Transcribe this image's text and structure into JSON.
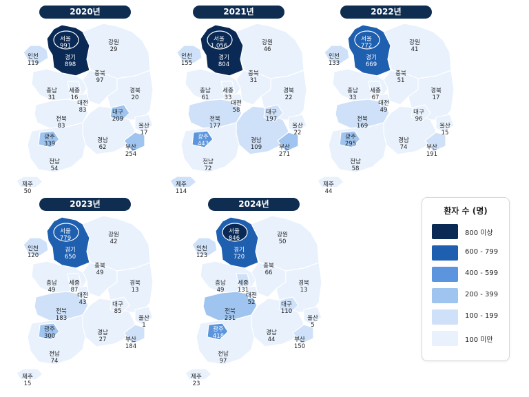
{
  "legend": {
    "title": "환자 수 (명)",
    "bins": [
      {
        "label": "800 이상",
        "color": "#0a2a55"
      },
      {
        "label": "600 - 799",
        "color": "#1f5fb0"
      },
      {
        "label": "400 - 599",
        "color": "#5b95dd"
      },
      {
        "label": "200 - 399",
        "color": "#9ec4ef"
      },
      {
        "label": "100 - 199",
        "color": "#cfe1f8"
      },
      {
        "label": "100 미만",
        "color": "#e8f1fc"
      }
    ]
  },
  "maps": [
    {
      "year": "2020년",
      "regions": {
        "seoul": {
          "name": "서울",
          "value": "991"
        },
        "gyeonggi": {
          "name": "경기",
          "value": "898"
        },
        "incheon": {
          "name": "인천",
          "value": "119"
        },
        "gangwon": {
          "name": "강원",
          "value": "29"
        },
        "chungbuk": {
          "name": "충북",
          "value": "97"
        },
        "chungnam": {
          "name": "충남",
          "value": "31"
        },
        "sejong": {
          "name": "세종",
          "value": "16"
        },
        "daejeon": {
          "name": "대전",
          "value": "83"
        },
        "gyeongbuk": {
          "name": "경북",
          "value": "20"
        },
        "daegu": {
          "name": "대구",
          "value": "209"
        },
        "jeonbuk": {
          "name": "전북",
          "value": "83"
        },
        "ulsan": {
          "name": "울산",
          "value": "17"
        },
        "gwangju": {
          "name": "광주",
          "value": "339"
        },
        "gyeongnam": {
          "name": "경남",
          "value": "62"
        },
        "busan": {
          "name": "부산",
          "value": "254"
        },
        "jeonnam": {
          "name": "전남",
          "value": "54"
        },
        "jeju": {
          "name": "제주",
          "value": "50"
        }
      }
    },
    {
      "year": "2021년",
      "regions": {
        "seoul": {
          "name": "서울",
          "value": "1,056"
        },
        "gyeonggi": {
          "name": "경기",
          "value": "804"
        },
        "incheon": {
          "name": "인천",
          "value": "155"
        },
        "gangwon": {
          "name": "강원",
          "value": "46"
        },
        "chungbuk": {
          "name": "충북",
          "value": "31"
        },
        "chungnam": {
          "name": "충남",
          "value": "61"
        },
        "sejong": {
          "name": "세종",
          "value": "33"
        },
        "daejeon": {
          "name": "대전",
          "value": "58"
        },
        "gyeongbuk": {
          "name": "경북",
          "value": "22"
        },
        "daegu": {
          "name": "대구",
          "value": "197"
        },
        "jeonbuk": {
          "name": "전북",
          "value": "177"
        },
        "ulsan": {
          "name": "울산",
          "value": "22"
        },
        "gwangju": {
          "name": "광주",
          "value": "443"
        },
        "gyeongnam": {
          "name": "경남",
          "value": "109"
        },
        "busan": {
          "name": "부산",
          "value": "271"
        },
        "jeonnam": {
          "name": "전남",
          "value": "72"
        },
        "jeju": {
          "name": "제주",
          "value": "114"
        }
      }
    },
    {
      "year": "2022년",
      "regions": {
        "seoul": {
          "name": "서울",
          "value": "772"
        },
        "gyeonggi": {
          "name": "경기",
          "value": "669"
        },
        "incheon": {
          "name": "인천",
          "value": "133"
        },
        "gangwon": {
          "name": "강원",
          "value": "41"
        },
        "chungbuk": {
          "name": "충북",
          "value": "51"
        },
        "chungnam": {
          "name": "충남",
          "value": "33"
        },
        "sejong": {
          "name": "세종",
          "value": "67"
        },
        "daejeon": {
          "name": "대전",
          "value": "49"
        },
        "gyeongbuk": {
          "name": "경북",
          "value": "17"
        },
        "daegu": {
          "name": "대구",
          "value": "96"
        },
        "jeonbuk": {
          "name": "전북",
          "value": "169"
        },
        "ulsan": {
          "name": "울산",
          "value": "15"
        },
        "gwangju": {
          "name": "광주",
          "value": "295"
        },
        "gyeongnam": {
          "name": "경남",
          "value": "74"
        },
        "busan": {
          "name": "부산",
          "value": "191"
        },
        "jeonnam": {
          "name": "전남",
          "value": "58"
        },
        "jeju": {
          "name": "제주",
          "value": "44"
        }
      }
    },
    {
      "year": "2023년",
      "regions": {
        "seoul": {
          "name": "서울",
          "value": "779"
        },
        "gyeonggi": {
          "name": "경기",
          "value": "650"
        },
        "incheon": {
          "name": "인천",
          "value": "120"
        },
        "gangwon": {
          "name": "강원",
          "value": "42"
        },
        "chungbuk": {
          "name": "충북",
          "value": "49"
        },
        "chungnam": {
          "name": "충남",
          "value": "49"
        },
        "sejong": {
          "name": "세종",
          "value": "87"
        },
        "daejeon": {
          "name": "대전",
          "value": "43"
        },
        "gyeongbuk": {
          "name": "경북",
          "value": "13"
        },
        "daegu": {
          "name": "대구",
          "value": "85"
        },
        "jeonbuk": {
          "name": "전북",
          "value": "183"
        },
        "ulsan": {
          "name": "울산",
          "value": "1"
        },
        "gwangju": {
          "name": "광주",
          "value": "300"
        },
        "gyeongnam": {
          "name": "경남",
          "value": "27"
        },
        "busan": {
          "name": "부산",
          "value": "184"
        },
        "jeonnam": {
          "name": "전남",
          "value": "74"
        },
        "jeju": {
          "name": "제주",
          "value": "15"
        }
      }
    },
    {
      "year": "2024년",
      "regions": {
        "seoul": {
          "name": "서울",
          "value": "846"
        },
        "gyeonggi": {
          "name": "경기",
          "value": "720"
        },
        "incheon": {
          "name": "인천",
          "value": "123"
        },
        "gangwon": {
          "name": "강원",
          "value": "50"
        },
        "chungbuk": {
          "name": "충북",
          "value": "66"
        },
        "chungnam": {
          "name": "충남",
          "value": "49"
        },
        "sejong": {
          "name": "세종",
          "value": "131"
        },
        "daejeon": {
          "name": "대전",
          "value": "52"
        },
        "gyeongbuk": {
          "name": "경북",
          "value": "13"
        },
        "daegu": {
          "name": "대구",
          "value": "110"
        },
        "jeonbuk": {
          "name": "전북",
          "value": "231"
        },
        "ulsan": {
          "name": "울산",
          "value": "5"
        },
        "gwangju": {
          "name": "광주",
          "value": "418"
        },
        "gyeongnam": {
          "name": "경남",
          "value": "44"
        },
        "busan": {
          "name": "부산",
          "value": "150"
        },
        "jeonnam": {
          "name": "전남",
          "value": "97"
        },
        "jeju": {
          "name": "제주",
          "value": "23"
        }
      }
    }
  ]
}
